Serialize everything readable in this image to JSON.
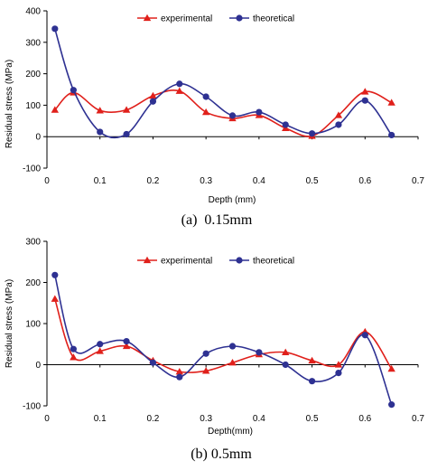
{
  "chart_data": [
    {
      "type": "line",
      "caption": "(a)  0.15mm",
      "xlabel": "Depth (mm)",
      "ylabel": "Residual stress (MPa)",
      "xlim": [
        0,
        0.7
      ],
      "ylim": [
        -100,
        400
      ],
      "xticks": [
        "0",
        "0.1",
        "0.2",
        "0.3",
        "0.4",
        "0.5",
        "0.6",
        "0.7"
      ],
      "yticks": [
        "-100",
        "0",
        "100",
        "200",
        "300",
        "400"
      ],
      "legend_position": "top-right",
      "grid": false,
      "series": [
        {
          "name": "experimental",
          "color": "#e0201b",
          "marker": "triangle",
          "x": [
            0.015,
            0.05,
            0.1,
            0.15,
            0.2,
            0.25,
            0.3,
            0.35,
            0.4,
            0.45,
            0.5,
            0.55,
            0.6,
            0.65
          ],
          "values": [
            85,
            140,
            83,
            85,
            130,
            145,
            78,
            58,
            68,
            27,
            2,
            68,
            143,
            108
          ]
        },
        {
          "name": "theoretical",
          "color": "#2e3192",
          "marker": "circle",
          "x": [
            0.015,
            0.05,
            0.1,
            0.15,
            0.2,
            0.25,
            0.3,
            0.35,
            0.4,
            0.45,
            0.5,
            0.55,
            0.6,
            0.65
          ],
          "values": [
            343,
            148,
            15,
            8,
            112,
            168,
            127,
            67,
            78,
            38,
            10,
            38,
            115,
            5
          ]
        }
      ]
    },
    {
      "type": "line",
      "caption": "(b) 0.5mm",
      "xlabel": "Depth(mm)",
      "ylabel": "Residual stress (MPa)",
      "xlim": [
        0,
        0.7
      ],
      "ylim": [
        -100,
        300
      ],
      "xticks": [
        "0",
        "0.1",
        "0.2",
        "0.3",
        "0.4",
        "0.5",
        "0.6",
        "0.7"
      ],
      "yticks": [
        "-100",
        "0",
        "100",
        "200",
        "300"
      ],
      "legend_position": "top-right",
      "grid": false,
      "series": [
        {
          "name": "experimental",
          "color": "#e0201b",
          "marker": "triangle",
          "x": [
            0.015,
            0.05,
            0.1,
            0.15,
            0.2,
            0.25,
            0.3,
            0.35,
            0.4,
            0.45,
            0.5,
            0.55,
            0.6,
            0.65
          ],
          "values": [
            160,
            18,
            33,
            45,
            10,
            -17,
            -15,
            5,
            25,
            30,
            10,
            0,
            80,
            -10
          ]
        },
        {
          "name": "theoretical",
          "color": "#2e3192",
          "marker": "circle",
          "x": [
            0.015,
            0.05,
            0.1,
            0.15,
            0.2,
            0.25,
            0.3,
            0.35,
            0.4,
            0.45,
            0.5,
            0.55,
            0.6,
            0.65
          ],
          "values": [
            218,
            38,
            50,
            57,
            5,
            -30,
            27,
            45,
            30,
            0,
            -40,
            -20,
            72,
            -97
          ]
        }
      ]
    }
  ]
}
